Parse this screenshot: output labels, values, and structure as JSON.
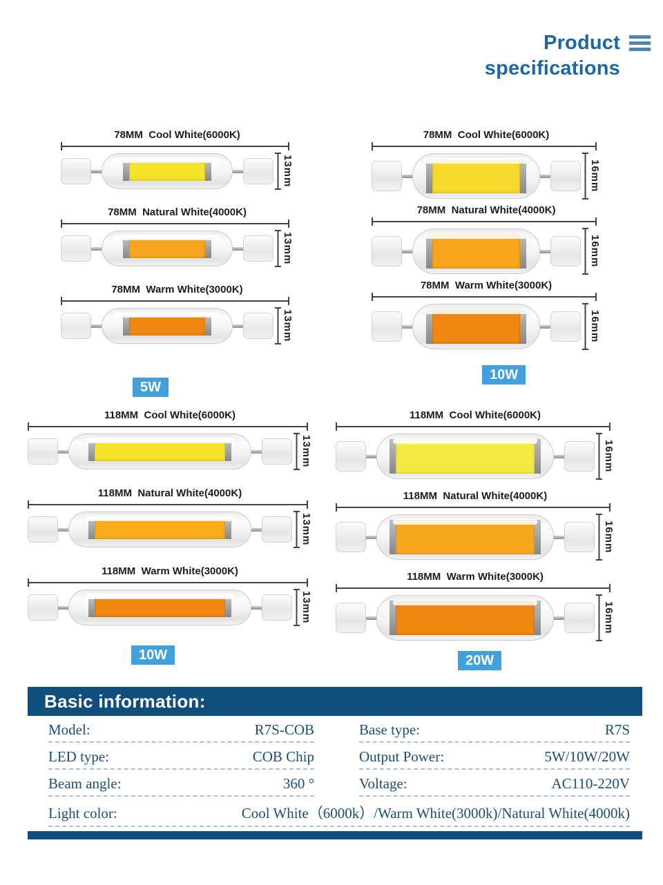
{
  "header": {
    "title_line1": "Product",
    "title_line2": "specifications"
  },
  "groups": [
    {
      "name": "78mm-5w",
      "wattage": "5W",
      "lamps": [
        {
          "label": "78MM  Cool White(6000K)",
          "height_label": "13mm",
          "led_color": "#f8e32b"
        },
        {
          "label": "78MM  Natural White(4000K)",
          "height_label": "13mm",
          "led_color": "#f8a61e"
        },
        {
          "label": "78MM  Warm White(3000K)",
          "height_label": "13mm",
          "led_color": "#ef8712"
        }
      ]
    },
    {
      "name": "78mm-10w",
      "wattage": "10W",
      "lamps": [
        {
          "label": "78MM  Cool White(6000K)",
          "height_label": "16mm",
          "led_color": "#f6da2e"
        },
        {
          "label": "78MM  Natural White(4000K)",
          "height_label": "16mm",
          "led_color": "#f8a61e"
        },
        {
          "label": "78MM  Warm White(3000K)",
          "height_label": "16mm",
          "led_color": "#ef8712"
        }
      ]
    },
    {
      "name": "118mm-10w",
      "wattage": "10W",
      "lamps": [
        {
          "label": "118MM  Cool White(6000K)",
          "height_label": "13mm",
          "led_color": "#f8e32b"
        },
        {
          "label": "118MM  Natural White(4000K)",
          "height_label": "13mm",
          "led_color": "#f8ac17"
        },
        {
          "label": "118MM  Warm White(3000K)",
          "height_label": "13mm",
          "led_color": "#ef8712"
        }
      ]
    },
    {
      "name": "118mm-20w",
      "wattage": "20W",
      "lamps": [
        {
          "label": "118MM  Cool White(6000K)",
          "height_label": "16mm",
          "led_color": "#f2ea3e"
        },
        {
          "label": "118MM  Natural White(4000K)",
          "height_label": "16mm",
          "led_color": "#f7a81f"
        },
        {
          "label": "118MM  Warm White(3000K)",
          "height_label": "16mm",
          "led_color": "#ef8712"
        }
      ]
    }
  ],
  "table": {
    "title": "Basic information:",
    "left": [
      {
        "label": "Model:",
        "value": "R7S-COB"
      },
      {
        "label": "LED type:",
        "value": "COB Chip"
      },
      {
        "label": "Beam angle:",
        "value": "360 °"
      }
    ],
    "right": [
      {
        "label": "Base type:",
        "value": "R7S"
      },
      {
        "label": "Output Power:",
        "value": "5W/10W/20W"
      },
      {
        "label": "Voltage:",
        "value": "AC110-220V"
      }
    ],
    "full": {
      "label": "Light color:",
      "value": "Cool White（6000k）/Warm White(3000k)/Natural White(4000k)"
    }
  },
  "colors": {
    "title_blue": "#1a67a4",
    "menu_icon_blue": "#4d87b8",
    "badge_blue": "#42a1dc",
    "table_header_bar": "#0f4e7d",
    "table_text_navy": "#1b4d7d",
    "dashed_line": "#a9c0d4"
  }
}
